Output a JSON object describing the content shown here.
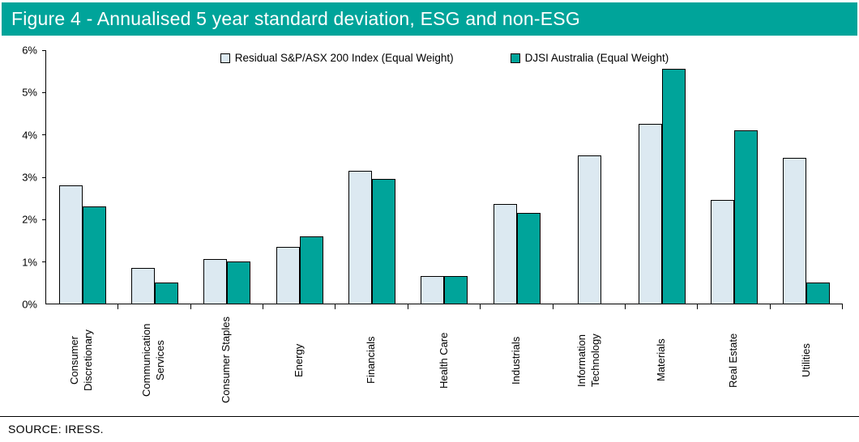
{
  "title": "Figure 4 - Annualised 5 year standard deviation, ESG and non-ESG",
  "source": "SOURCE: IRESS.",
  "colors": {
    "title_bar_bg": "#00A49A",
    "title_text": "#FFFFFF",
    "axis": "#000000",
    "background": "#FFFFFF"
  },
  "chart_data": {
    "type": "bar",
    "title": "Figure 4 - Annualised 5 year standard deviation, ESG and non-ESG",
    "categories": [
      "Consumer Discretionary",
      "Communication Services",
      "Consumer Staples",
      "Energy",
      "Financials",
      "Health Care",
      "Industrials",
      "Information Technology",
      "Materials",
      "Real Estate",
      "Utilities"
    ],
    "series": [
      {
        "name": "Residual S&P/ASX 200 Index (Equal Weight)",
        "color": "#DCE9F1",
        "values": [
          2.8,
          0.85,
          1.05,
          1.35,
          3.15,
          0.65,
          2.35,
          3.5,
          4.25,
          2.45,
          3.45
        ]
      },
      {
        "name": "DJSI Australia (Equal Weight)",
        "color": "#00A49A",
        "values": [
          2.3,
          0.5,
          1.0,
          1.6,
          2.95,
          0.65,
          2.15,
          0,
          5.55,
          4.1,
          0.5
        ]
      }
    ],
    "xlabel": "",
    "ylabel": "",
    "ylim": [
      0,
      6
    ],
    "yticks": [
      "0%",
      "1%",
      "2%",
      "3%",
      "4%",
      "5%",
      "6%"
    ],
    "value_unit": "%",
    "grid": false,
    "legend_position": "top-center"
  }
}
